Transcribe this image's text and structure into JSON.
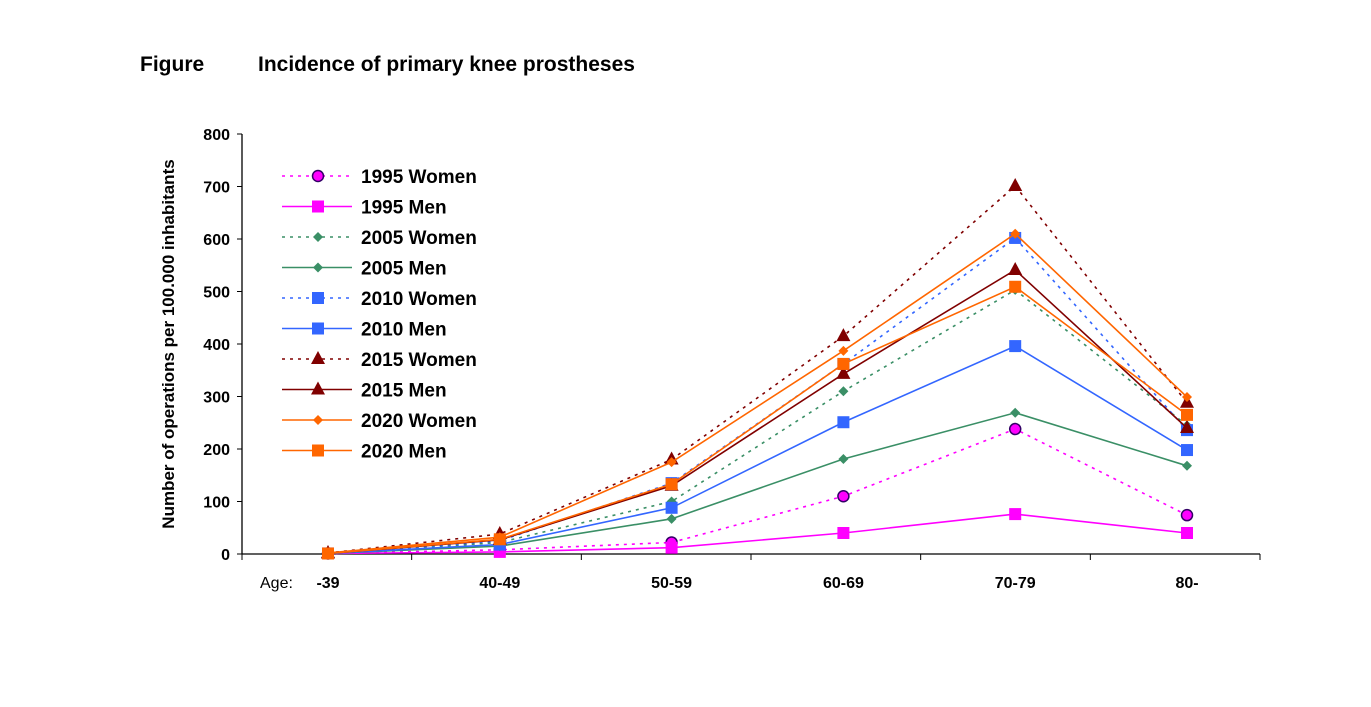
{
  "header": {
    "label": "Figure",
    "title": "Incidence of primary knee prostheses"
  },
  "chart_data": {
    "type": "line",
    "title": "Incidence of primary knee prostheses",
    "ylabel": "Number of operations per 100.000 inhabitants",
    "xlabel_prefix": "Age:",
    "categories": [
      "-39",
      "40-49",
      "50-59",
      "60-69",
      "70-79",
      "80-"
    ],
    "ylim": [
      0,
      800
    ],
    "yticks": [
      0,
      100,
      200,
      300,
      400,
      500,
      600,
      700,
      800
    ],
    "grid": false,
    "legend": "top-left",
    "series": [
      {
        "name": "1995 Women",
        "color": "#FF00FF",
        "dash": "dotted",
        "marker": "circle",
        "values": [
          1,
          8,
          22,
          110,
          238,
          74
        ]
      },
      {
        "name": "1995 Men",
        "color": "#FF00FF",
        "dash": "solid",
        "marker": "square",
        "values": [
          1,
          4,
          12,
          40,
          76,
          40
        ]
      },
      {
        "name": "2005 Women",
        "color": "#3A8F66",
        "dash": "dotted",
        "marker": "diamond",
        "values": [
          1,
          22,
          100,
          310,
          503,
          245
        ]
      },
      {
        "name": "2005 Men",
        "color": "#3A8F66",
        "dash": "solid",
        "marker": "diamond",
        "values": [
          1,
          15,
          67,
          181,
          269,
          168
        ]
      },
      {
        "name": "2010 Women",
        "color": "#3366FF",
        "dash": "dotted",
        "marker": "square",
        "values": [
          1,
          25,
          135,
          362,
          602,
          236
        ]
      },
      {
        "name": "2010 Men",
        "color": "#3366FF",
        "dash": "solid",
        "marker": "square",
        "values": [
          1,
          18,
          88,
          251,
          396,
          198
        ]
      },
      {
        "name": "2015 Women",
        "color": "#800000",
        "dash": "dotted",
        "marker": "triangle",
        "values": [
          2,
          38,
          180,
          415,
          701,
          288
        ]
      },
      {
        "name": "2015 Men",
        "color": "#800000",
        "dash": "solid",
        "marker": "triangle",
        "values": [
          1,
          27,
          130,
          343,
          541,
          240
        ]
      },
      {
        "name": "2020 Women",
        "color": "#FF6600",
        "dash": "solid",
        "marker": "diamond",
        "values": [
          2,
          32,
          175,
          387,
          610,
          299
        ]
      },
      {
        "name": "2020 Men",
        "color": "#FF6600",
        "dash": "solid",
        "marker": "square",
        "values": [
          1,
          28,
          133,
          362,
          509,
          265
        ]
      }
    ]
  }
}
